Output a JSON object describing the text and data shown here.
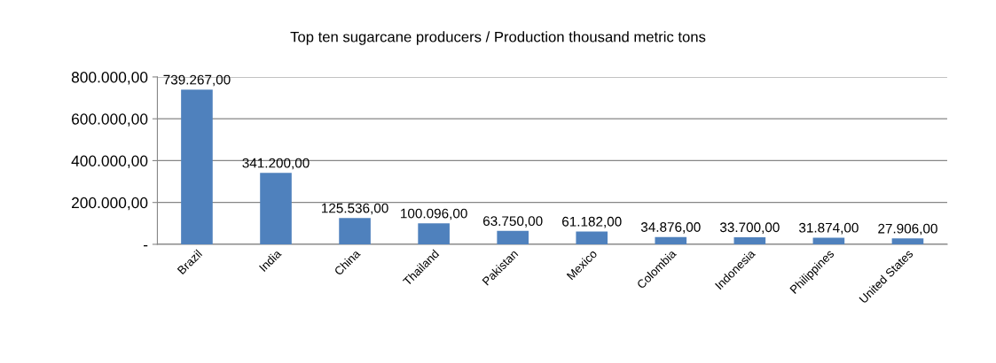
{
  "chart_data": {
    "type": "bar",
    "title": "Top ten sugarcane producers / Production thousand metric tons",
    "categories": [
      "Brazil",
      "India",
      "China",
      "Thailand",
      "Pakistan",
      "Mexico",
      "Colombia",
      "Indonesia",
      "Philippines",
      "United States"
    ],
    "values": [
      739267,
      341200,
      125536,
      100096,
      63750,
      61182,
      34876,
      33700,
      31874,
      27906
    ],
    "value_labels": [
      "739.267,00",
      "341.200,00",
      "125.536,00",
      "100.096,00",
      "63.750,00",
      "61.182,00",
      "34.876,00",
      "33.700,00",
      "31.874,00",
      "27.906,00"
    ],
    "color": "#4f81bd",
    "ylim": [
      0,
      800000
    ],
    "yticks": [
      {
        "value": 0,
        "label": "-"
      },
      {
        "value": 200000,
        "label": "200.000,00"
      },
      {
        "value": 400000,
        "label": "400.000,00"
      },
      {
        "value": 600000,
        "label": "600.000,00"
      },
      {
        "value": 800000,
        "label": "800.000,00"
      }
    ],
    "grid": "y",
    "legend": false
  }
}
